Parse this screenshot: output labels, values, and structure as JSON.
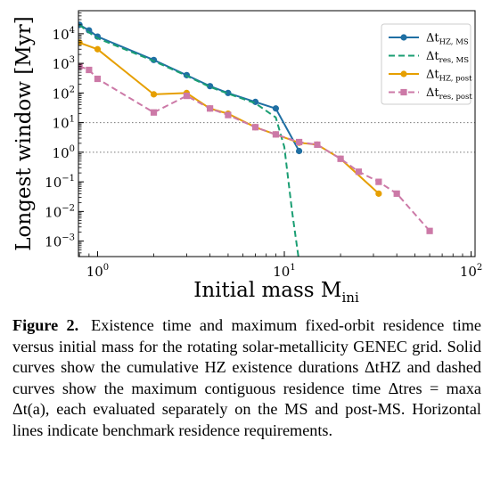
{
  "chart_data": {
    "type": "line",
    "xlabel": "Initial mass M",
    "xlabel_sub": "ini",
    "ylabel": "Longest window [Myr]",
    "xscale": "log",
    "yscale": "log",
    "xlim": [
      0.79,
      105
    ],
    "ylim": [
      0.0003,
      60000
    ],
    "x_ticks": [
      {
        "value": 1,
        "base": "10",
        "exp": "0"
      },
      {
        "value": 10,
        "base": "10",
        "exp": "1"
      },
      {
        "value": 100,
        "base": "10",
        "exp": "2"
      }
    ],
    "y_ticks": [
      {
        "value": 10000,
        "base": "10",
        "exp": "4"
      },
      {
        "value": 1000,
        "base": "10",
        "exp": "3"
      },
      {
        "value": 100,
        "base": "10",
        "exp": "2"
      },
      {
        "value": 10,
        "base": "10",
        "exp": "1"
      },
      {
        "value": 1,
        "base": "10",
        "exp": "0"
      },
      {
        "value": 0.1,
        "base": "10",
        "exp": "−1"
      },
      {
        "value": 0.01,
        "base": "10",
        "exp": "−2"
      },
      {
        "value": 0.001,
        "base": "10",
        "exp": "−3"
      }
    ],
    "hlines": [
      10,
      1
    ],
    "legend_position": "top-right",
    "series": [
      {
        "name": "Δt",
        "name_sub": "HZ, MS",
        "color": "#1f6fa3",
        "style": "solid",
        "marker": "circle",
        "x": [
          0.8,
          0.9,
          1.0,
          2.0,
          3.0,
          4.0,
          5.0,
          7.0,
          9.0,
          12.0
        ],
        "y": [
          20000,
          13000,
          8000,
          1300,
          400,
          170,
          100,
          50,
          30,
          1.1
        ]
      },
      {
        "name": "Δt",
        "name_sub": "res, MS",
        "color": "#1a9e73",
        "style": "dashed",
        "marker": "none",
        "x": [
          0.8,
          0.9,
          1.0,
          2.0,
          3.0,
          4.0,
          5.0,
          7.0,
          9.0,
          10.0,
          11.0,
          12.0
        ],
        "y": [
          20000,
          11000,
          7000,
          1200,
          380,
          160,
          95,
          45,
          15,
          1.5,
          0.01,
          0.0002
        ]
      },
      {
        "name": "Δt",
        "name_sub": "HZ, post",
        "color": "#e69f00",
        "style": "solid",
        "marker": "circle",
        "x": [
          0.8,
          1.0,
          2.0,
          3.0,
          4.0,
          5.0,
          7.0,
          9.0,
          12.0,
          15.0,
          20.0,
          32.0
        ],
        "y": [
          5000,
          3000,
          90,
          100,
          30,
          20,
          7,
          4,
          2.1,
          1.8,
          0.6,
          0.04
        ]
      },
      {
        "name": "Δt",
        "name_sub": "res, post",
        "color": "#cc79a7",
        "style": "dashed",
        "marker": "square",
        "x": [
          0.8,
          0.9,
          1.0,
          2.0,
          3.0,
          4.0,
          5.0,
          7.0,
          9.0,
          12.0,
          15.0,
          20.0,
          25.0,
          32.0,
          40.0,
          60.0
        ],
        "y": [
          800,
          600,
          300,
          22,
          80,
          30,
          18,
          7,
          4,
          2.2,
          1.8,
          0.6,
          0.22,
          0.1,
          0.04,
          0.0022
        ]
      }
    ]
  },
  "caption": {
    "label": "Figure 2.",
    "text": "Existence time and maximum fixed-orbit residence time versus initial mass for the rotating solar-metallicity GENEC grid. Solid curves show the cumulative HZ existence durations ΔtHZ and dashed curves show the maximum contiguous residence time Δtres = maxa Δt(a), each evaluated separately on the MS and post-MS. Horizontal lines indicate benchmark residence requirements."
  }
}
